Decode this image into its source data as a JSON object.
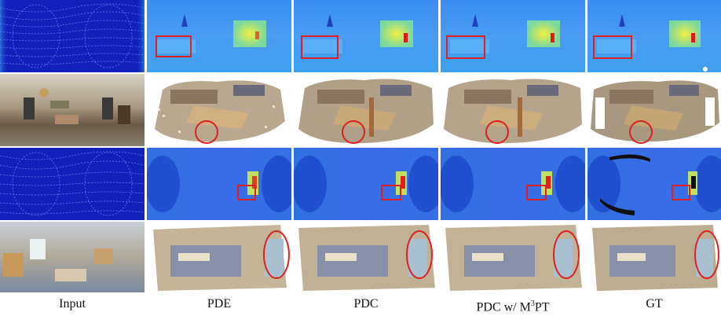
{
  "columns": [
    {
      "key": "input",
      "label": "Input"
    },
    {
      "key": "pde",
      "label": "PDE"
    },
    {
      "key": "pdc",
      "label": "PDC"
    },
    {
      "key": "pdc_m3pt",
      "label_pre": "PDC w/ M",
      "label_sup": "3",
      "label_post": "PT"
    },
    {
      "key": "gt",
      "label": "GT"
    }
  ],
  "rows": [
    {
      "key": "depth-1",
      "kind": "depth"
    },
    {
      "key": "pointcloud-1",
      "kind": "pointcloud"
    },
    {
      "key": "depth-2",
      "kind": "depth"
    },
    {
      "key": "pointcloud-2",
      "kind": "pointcloud"
    }
  ],
  "colors": {
    "depth_low": "#1a2fd0",
    "depth_mid": "#2f7fe8",
    "depth_high": "#e8e83a",
    "highlight": "#e02020"
  }
}
